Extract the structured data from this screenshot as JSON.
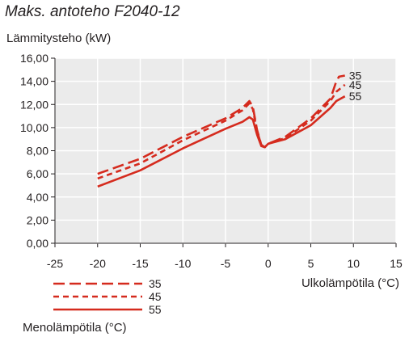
{
  "title": "Maks. antoteho F2040-12",
  "colors": {
    "plot_background": "#ebebeb",
    "grid": "#ffffff",
    "series": "#d52b1e",
    "axis": "#231f20"
  },
  "chart_data": {
    "type": "line",
    "title": "Maks. antoteho F2040-12",
    "ylabel": "Lämmitysteho (kW)",
    "xlabel": "Ulkolämpötila (°C)",
    "xlim": [
      -25,
      15
    ],
    "ylim": [
      0,
      16
    ],
    "x_ticks": [
      "-25",
      "-20",
      "-15",
      "-10",
      "-5",
      "0",
      "5",
      "10",
      "15"
    ],
    "y_ticks": [
      "0,00",
      "2,00",
      "4,00",
      "6,00",
      "8,00",
      "10,00",
      "12,00",
      "14,00",
      "16,00"
    ],
    "grid": true,
    "legend_title": "Menolämpötila (°C)",
    "legend_position": "bottom-left",
    "series": [
      {
        "name": "35",
        "dash": "long-dash",
        "points": [
          [
            -20,
            6.0
          ],
          [
            -15,
            7.3
          ],
          [
            -10,
            9.2
          ],
          [
            -5,
            10.8
          ],
          [
            -3,
            11.7
          ],
          [
            -2.2,
            12.3
          ],
          [
            -1.8,
            11.8
          ],
          [
            -1.3,
            9.8
          ],
          [
            -0.8,
            8.5
          ],
          [
            -0.4,
            8.3
          ],
          [
            0,
            8.6
          ],
          [
            2,
            9.2
          ],
          [
            5,
            10.8
          ],
          [
            7.3,
            12.5
          ],
          [
            7.9,
            13.8
          ],
          [
            8.3,
            14.4
          ],
          [
            9,
            14.5
          ]
        ]
      },
      {
        "name": "45",
        "dash": "short-dash",
        "points": [
          [
            -20,
            5.6
          ],
          [
            -15,
            6.9
          ],
          [
            -10,
            8.9
          ],
          [
            -5,
            10.6
          ],
          [
            -3,
            11.5
          ],
          [
            -2.2,
            12.1
          ],
          [
            -1.8,
            11.6
          ],
          [
            -1.3,
            9.7
          ],
          [
            -0.8,
            8.5
          ],
          [
            -0.4,
            8.3
          ],
          [
            0,
            8.6
          ],
          [
            2,
            9.1
          ],
          [
            5,
            10.6
          ],
          [
            7.3,
            12.3
          ],
          [
            8,
            13.1
          ],
          [
            9,
            13.7
          ]
        ]
      },
      {
        "name": "55",
        "dash": "solid",
        "points": [
          [
            -20,
            4.9
          ],
          [
            -15,
            6.3
          ],
          [
            -10,
            8.2
          ],
          [
            -5,
            9.9
          ],
          [
            -3,
            10.5
          ],
          [
            -2.2,
            10.9
          ],
          [
            -1.8,
            10.7
          ],
          [
            -1.3,
            9.4
          ],
          [
            -0.8,
            8.4
          ],
          [
            -0.4,
            8.3
          ],
          [
            0,
            8.6
          ],
          [
            2,
            9.0
          ],
          [
            5,
            10.2
          ],
          [
            7.3,
            11.7
          ],
          [
            8,
            12.3
          ],
          [
            9,
            12.7
          ]
        ]
      }
    ]
  }
}
